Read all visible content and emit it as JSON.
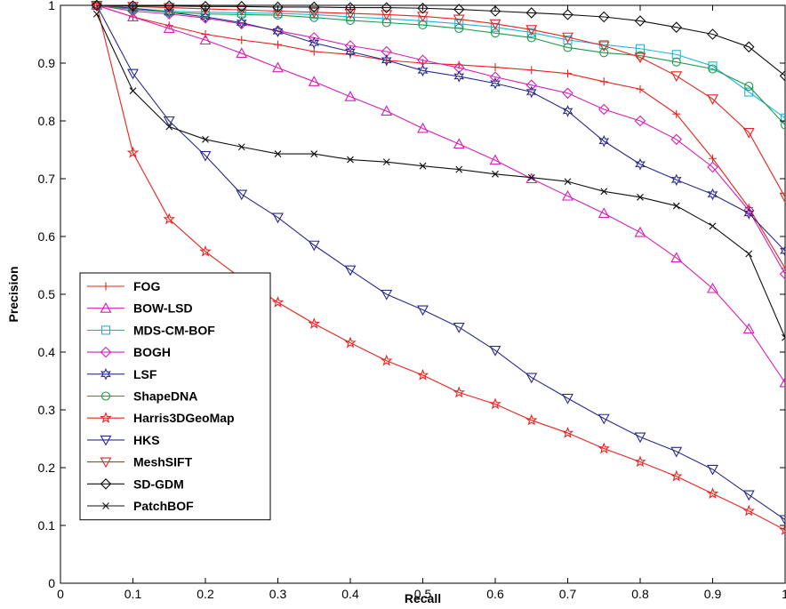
{
  "chart_data": {
    "type": "line",
    "title": "",
    "xlabel": "Recall",
    "ylabel": "Precision",
    "xlim": [
      0,
      1
    ],
    "ylim": [
      0,
      1
    ],
    "xticks": [
      0,
      0.1,
      0.2,
      0.3,
      0.4,
      0.5,
      0.6,
      0.7,
      0.8,
      0.9,
      1
    ],
    "yticks": [
      0,
      0.1,
      0.2,
      0.3,
      0.4,
      0.5,
      0.6,
      0.7,
      0.8,
      0.9,
      1
    ],
    "xtick_labels": [
      "0",
      "0.1",
      "0.2",
      "0.3",
      "0.4",
      "0.5",
      "0.6",
      "0.7",
      "0.8",
      "0.9",
      "1"
    ],
    "ytick_labels": [
      "0",
      "0.1",
      "0.2",
      "0.3",
      "0.4",
      "0.5",
      "0.6",
      "0.7",
      "0.8",
      "0.9",
      "1"
    ],
    "grid": false,
    "legend_position": "bottom-left",
    "x": [
      0.05,
      0.1,
      0.15,
      0.2,
      0.25,
      0.3,
      0.35,
      0.4,
      0.45,
      0.5,
      0.55,
      0.6,
      0.65,
      0.7,
      0.75,
      0.8,
      0.85,
      0.9,
      0.95,
      1.0
    ],
    "series": [
      {
        "name": "FOG",
        "color": "#e8231f",
        "marker": "plus",
        "values": [
          1.0,
          0.98,
          0.965,
          0.95,
          0.94,
          0.932,
          0.92,
          0.915,
          0.905,
          0.9,
          0.897,
          0.893,
          0.888,
          0.882,
          0.868,
          0.855,
          0.812,
          0.735,
          0.65,
          0.545
        ]
      },
      {
        "name": "BOW-LSD",
        "color": "#d61fb7",
        "marker": "triangle-up",
        "values": [
          1.0,
          0.98,
          0.96,
          0.94,
          0.917,
          0.892,
          0.868,
          0.842,
          0.817,
          0.787,
          0.76,
          0.732,
          0.7,
          0.67,
          0.64,
          0.607,
          0.563,
          0.51,
          0.44,
          0.347
        ]
      },
      {
        "name": "MDS-CM-BOF",
        "color": "#1fb4d8",
        "marker": "square",
        "values": [
          1.0,
          0.995,
          0.99,
          0.988,
          0.987,
          0.986,
          0.984,
          0.98,
          0.977,
          0.973,
          0.968,
          0.962,
          0.953,
          0.94,
          0.932,
          0.925,
          0.915,
          0.895,
          0.85,
          0.805
        ]
      },
      {
        "name": "BOGH",
        "color": "#d61fb7",
        "marker": "diamond",
        "values": [
          1.0,
          0.99,
          0.985,
          0.978,
          0.968,
          0.956,
          0.944,
          0.93,
          0.92,
          0.905,
          0.892,
          0.876,
          0.862,
          0.848,
          0.82,
          0.8,
          0.768,
          0.72,
          0.645,
          0.535
        ]
      },
      {
        "name": "LSF",
        "color": "#2a2a8a",
        "marker": "star6",
        "values": [
          1.0,
          0.995,
          0.988,
          0.98,
          0.97,
          0.955,
          0.935,
          0.92,
          0.905,
          0.887,
          0.877,
          0.865,
          0.85,
          0.817,
          0.765,
          0.725,
          0.698,
          0.673,
          0.64,
          0.575
        ]
      },
      {
        "name": "ShapeDNA",
        "color": "#1f9a4a",
        "marker": "circle",
        "values": [
          1.0,
          0.993,
          0.988,
          0.985,
          0.984,
          0.983,
          0.979,
          0.974,
          0.97,
          0.966,
          0.96,
          0.952,
          0.944,
          0.927,
          0.918,
          0.913,
          0.902,
          0.89,
          0.86,
          0.793
        ]
      },
      {
        "name": "Harris3DGeoMap",
        "color": "#e8231f",
        "marker": "star5",
        "values": [
          1.0,
          0.745,
          0.63,
          0.574,
          0.527,
          0.486,
          0.449,
          0.416,
          0.385,
          0.36,
          0.33,
          0.31,
          0.282,
          0.26,
          0.233,
          0.21,
          0.185,
          0.155,
          0.125,
          0.092
        ]
      },
      {
        "name": "HKS",
        "color": "#2a2a8a",
        "marker": "triangle-down",
        "values": [
          1.0,
          0.882,
          0.8,
          0.74,
          0.673,
          0.633,
          0.585,
          0.542,
          0.5,
          0.473,
          0.443,
          0.403,
          0.356,
          0.32,
          0.285,
          0.253,
          0.228,
          0.197,
          0.153,
          0.11
        ]
      },
      {
        "name": "MeshSIFT",
        "color": "#e8231f",
        "marker": "triangle-down",
        "values": [
          1.0,
          0.998,
          0.996,
          0.994,
          0.992,
          0.99,
          0.988,
          0.986,
          0.984,
          0.981,
          0.976,
          0.968,
          0.958,
          0.945,
          0.93,
          0.91,
          0.878,
          0.838,
          0.78,
          0.668
        ]
      },
      {
        "name": "SD-GDM",
        "color": "#111111",
        "marker": "diamond",
        "values": [
          1.0,
          0.999,
          0.999,
          0.998,
          0.998,
          0.997,
          0.997,
          0.996,
          0.996,
          0.995,
          0.993,
          0.99,
          0.987,
          0.984,
          0.98,
          0.973,
          0.962,
          0.95,
          0.928,
          0.878
        ]
      },
      {
        "name": "PatchBOF",
        "color": "#111111",
        "marker": "x",
        "values": [
          0.985,
          0.852,
          0.79,
          0.768,
          0.755,
          0.743,
          0.743,
          0.733,
          0.729,
          0.722,
          0.716,
          0.708,
          0.702,
          0.695,
          0.678,
          0.668,
          0.653,
          0.618,
          0.57,
          0.425
        ]
      }
    ]
  }
}
